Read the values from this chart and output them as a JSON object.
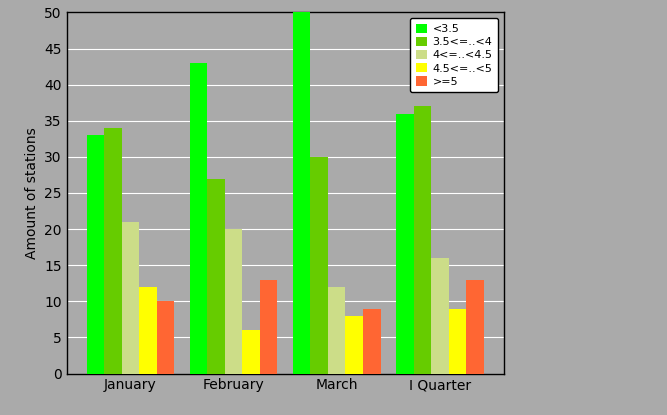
{
  "categories": [
    "January",
    "February",
    "March",
    "I Quarter"
  ],
  "series": [
    {
      "label": "<3.5",
      "values": [
        33,
        43,
        50,
        36
      ],
      "color": "#00FF00"
    },
    {
      "label": "3.5<=..<4",
      "values": [
        34,
        27,
        30,
        37
      ],
      "color": "#66CC00"
    },
    {
      "label": "4<=..<4.5",
      "values": [
        21,
        20,
        12,
        16
      ],
      "color": "#CCDD88"
    },
    {
      "label": "4.5<=..<5",
      "values": [
        12,
        6,
        8,
        9
      ],
      "color": "#FFFF00"
    },
    {
      "label": ">=5",
      "values": [
        10,
        13,
        9,
        13
      ],
      "color": "#FF6633"
    }
  ],
  "ylabel": "Amount of stations",
  "ylim": [
    0,
    50
  ],
  "yticks": [
    0,
    5,
    10,
    15,
    20,
    25,
    30,
    35,
    40,
    45,
    50
  ],
  "plot_bg_color": "#AAAAAA",
  "fig_bg_color": "#AAAAAA",
  "bar_width": 0.17,
  "legend_labels": [
    "<3.5",
    "3.5<=..<4",
    "4<=..<4.5",
    "4.5<=..<5",
    ">=5"
  ]
}
